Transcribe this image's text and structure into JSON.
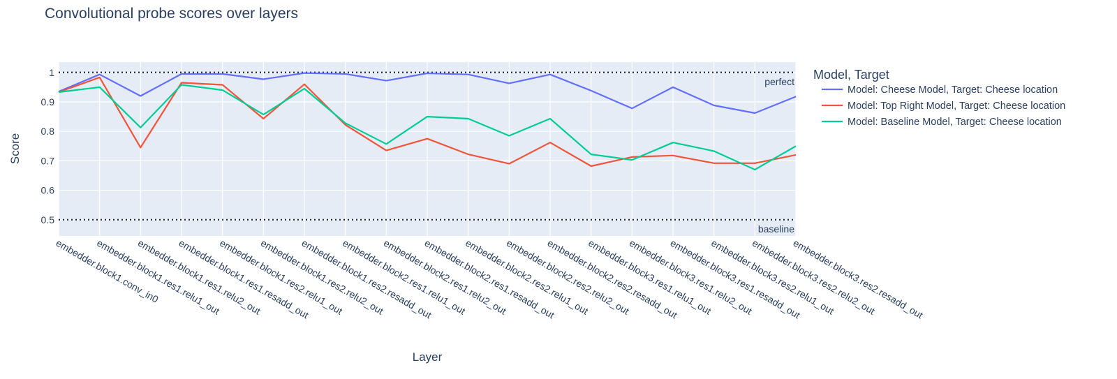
{
  "chart_data": {
    "type": "line",
    "title": "Convolutional probe scores over layers",
    "xlabel": "Layer",
    "ylabel": "Score",
    "ylim": [
      0.445,
      1.035
    ],
    "yticks": [
      0.5,
      0.6,
      0.7,
      0.8,
      0.9,
      1
    ],
    "ytick_labels": [
      "0.5",
      "0.6",
      "0.7",
      "0.8",
      "0.9",
      "1"
    ],
    "grid": true,
    "legend_position": "right",
    "legend_title": "Model, Target",
    "categories": [
      "embedder.block1.conv_in0",
      "embedder.block1.res1.relu1_out",
      "embedder.block1.res1.relu2_out",
      "embedder.block1.res1.resadd_out",
      "embedder.block1.res2.relu1_out",
      "embedder.block1.res2.relu2_out",
      "embedder.block1.res2.resadd_out",
      "embedder.block2.res1.relu1_out",
      "embedder.block2.res1.relu2_out",
      "embedder.block2.res1.resadd_out",
      "embedder.block2.res2.relu1_out",
      "embedder.block2.res2.relu2_out",
      "embedder.block2.res2.resadd_out",
      "embedder.block3.res1.relu1_out",
      "embedder.block3.res1.relu2_out",
      "embedder.block3.res1.resadd_out",
      "embedder.block3.res2.relu1_out",
      "embedder.block3.res2.relu2_out",
      "embedder.block3.res2.resadd_out"
    ],
    "series": [
      {
        "name": "Model: Cheese Model, Target: Cheese location",
        "color": "#636efa",
        "values": [
          0.935,
          0.993,
          0.92,
          0.995,
          0.995,
          0.977,
          0.998,
          0.995,
          0.972,
          0.997,
          0.993,
          0.963,
          0.993,
          0.938,
          0.878,
          0.95,
          0.888,
          0.862,
          0.918
        ]
      },
      {
        "name": "Model: Top Right Model, Target: Cheese location",
        "color": "#ef553b",
        "values": [
          0.933,
          0.983,
          0.745,
          0.965,
          0.958,
          0.843,
          0.96,
          0.822,
          0.735,
          0.775,
          0.722,
          0.69,
          0.762,
          0.682,
          0.713,
          0.718,
          0.692,
          0.692,
          0.72
        ]
      },
      {
        "name": "Model: Baseline Model, Target: Cheese location",
        "color": "#00cc96",
        "values": [
          0.933,
          0.95,
          0.813,
          0.958,
          0.94,
          0.857,
          0.945,
          0.828,
          0.757,
          0.85,
          0.843,
          0.785,
          0.843,
          0.722,
          0.703,
          0.762,
          0.733,
          0.67,
          0.75
        ]
      }
    ],
    "reference_lines": [
      {
        "value": 1,
        "label": "perfect",
        "style": "dotted"
      },
      {
        "value": 0.5,
        "label": "baseline",
        "style": "dotted"
      }
    ]
  }
}
